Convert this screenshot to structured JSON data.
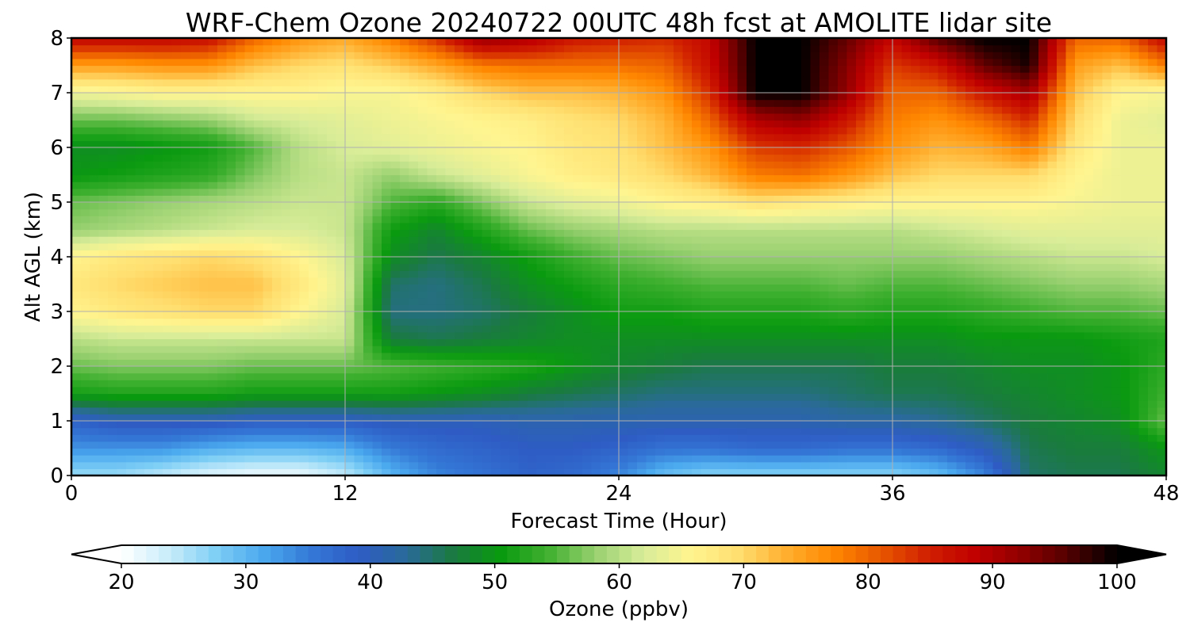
{
  "chart_data": {
    "type": "heatmap",
    "title": "WRF-Chem Ozone  20240722 00UTC 48h fcst at AMOLITE lidar site",
    "xlabel": "Forecast Time (Hour)",
    "ylabel": "Alt AGL (km)",
    "xlim": [
      0,
      48
    ],
    "ylim": [
      0,
      8
    ],
    "x_ticks": [
      "0",
      "12",
      "24",
      "36",
      "48"
    ],
    "y_ticks": [
      "0",
      "1",
      "2",
      "3",
      "4",
      "5",
      "6",
      "7",
      "8"
    ],
    "grid": true,
    "colorbar": {
      "label": "Ozone  (ppbv)",
      "range": [
        20,
        100
      ],
      "ticks": [
        "20",
        "30",
        "40",
        "50",
        "60",
        "70",
        "80",
        "90",
        "100"
      ],
      "extend": "both",
      "colors": [
        "#ffffff",
        "#c8ecfa",
        "#7ecef5",
        "#4aa8ee",
        "#3478d6",
        "#2e5cc4",
        "#2a6a9a",
        "#1a7a40",
        "#0a9a10",
        "#40b030",
        "#98d070",
        "#d8ec98",
        "#fff590",
        "#ffdf70",
        "#ffb030",
        "#ff8800",
        "#e85800",
        "#d02000",
        "#c00000",
        "#900000",
        "#500000",
        "#000000"
      ]
    },
    "x_hours": [
      0,
      2,
      4,
      6,
      8,
      10,
      12,
      14,
      16,
      18,
      20,
      22,
      24,
      26,
      28,
      30,
      32,
      34,
      36,
      38,
      40,
      42,
      44,
      46,
      48
    ],
    "z_km": [
      0,
      0.5,
      1,
      1.5,
      2,
      2.5,
      3,
      3.5,
      4,
      4.5,
      5,
      5.5,
      6,
      6.5,
      7,
      7.5,
      8
    ],
    "ozone_ppbv": [
      [
        26,
        26,
        24,
        22,
        21,
        21,
        24,
        30,
        34,
        36,
        38,
        37,
        34,
        29,
        27,
        27,
        27,
        27,
        27,
        29,
        34,
        45,
        46,
        46,
        48
      ],
      [
        33,
        33,
        33,
        31,
        30,
        30,
        31,
        35,
        37,
        38,
        39,
        39,
        38,
        36,
        36,
        37,
        37,
        36,
        36,
        37,
        40,
        46,
        47,
        47,
        50
      ],
      [
        38,
        40,
        40,
        40,
        39,
        39,
        39,
        40,
        40,
        40,
        41,
        41,
        41,
        41,
        41,
        41,
        41,
        42,
        42,
        43,
        45,
        47,
        48,
        49,
        56
      ],
      [
        51,
        52,
        52,
        52,
        51,
        51,
        51,
        51,
        50,
        49,
        47,
        46,
        45,
        44,
        44,
        44,
        44,
        45,
        46,
        46,
        47,
        48,
        49,
        50,
        54
      ],
      [
        56,
        57,
        57,
        57,
        56,
        56,
        56,
        55,
        54,
        53,
        52,
        50,
        48,
        47,
        46,
        46,
        46,
        46,
        47,
        47,
        48,
        49,
        49,
        50,
        53
      ],
      [
        60,
        61,
        61,
        61,
        61,
        61,
        61,
        47,
        46,
        47,
        48,
        49,
        49,
        49,
        49,
        49,
        49,
        49,
        49,
        49,
        50,
        50,
        50,
        51,
        52
      ],
      [
        66,
        68,
        69,
        70,
        70,
        66,
        62,
        44,
        44,
        45,
        47,
        49,
        51,
        51,
        52,
        52,
        52,
        53,
        52,
        52,
        53,
        54,
        55,
        55,
        56
      ],
      [
        68,
        70,
        71,
        72,
        72,
        68,
        63,
        45,
        44,
        46,
        49,
        51,
        53,
        54,
        55,
        55,
        55,
        56,
        55,
        55,
        56,
        57,
        58,
        58,
        59
      ],
      [
        66,
        68,
        69,
        70,
        69,
        66,
        62,
        49,
        46,
        48,
        51,
        54,
        56,
        57,
        58,
        58,
        58,
        58,
        58,
        58,
        59,
        60,
        61,
        61,
        62
      ],
      [
        58,
        59,
        60,
        61,
        62,
        62,
        61,
        51,
        48,
        52,
        56,
        58,
        59,
        60,
        60,
        60,
        60,
        60,
        60,
        61,
        62,
        63,
        63,
        63,
        63
      ],
      [
        56,
        57,
        58,
        59,
        60,
        61,
        61,
        55,
        53,
        57,
        61,
        63,
        64,
        66,
        67,
        69,
        68,
        67,
        66,
        66,
        66,
        66,
        65,
        64,
        64
      ],
      [
        50,
        51,
        52,
        53,
        57,
        60,
        61,
        58,
        61,
        63,
        65,
        67,
        68,
        70,
        73,
        78,
        79,
        76,
        72,
        70,
        70,
        70,
        66,
        64,
        64
      ],
      [
        49,
        49,
        50,
        51,
        55,
        60,
        62,
        63,
        64,
        65,
        66,
        68,
        69,
        72,
        76,
        83,
        84,
        81,
        76,
        73,
        74,
        78,
        68,
        64,
        64
      ],
      [
        56,
        56,
        57,
        58,
        61,
        62,
        63,
        64,
        65,
        66,
        67,
        69,
        70,
        73,
        80,
        90,
        92,
        86,
        78,
        76,
        79,
        84,
        70,
        64,
        63
      ],
      [
        64,
        65,
        66,
        66,
        66,
        66,
        65,
        65,
        67,
        70,
        72,
        72,
        73,
        76,
        84,
        100,
        100,
        92,
        80,
        80,
        86,
        91,
        72,
        66,
        65
      ],
      [
        75,
        75,
        76,
        76,
        72,
        70,
        69,
        71,
        74,
        78,
        79,
        79,
        79,
        80,
        87,
        100,
        100,
        93,
        83,
        86,
        95,
        99,
        75,
        72,
        78
      ],
      [
        88,
        88,
        88,
        87,
        80,
        76,
        74,
        78,
        84,
        92,
        90,
        86,
        85,
        84,
        88,
        100,
        100,
        95,
        88,
        96,
        100,
        100,
        80,
        80,
        88
      ]
    ]
  }
}
